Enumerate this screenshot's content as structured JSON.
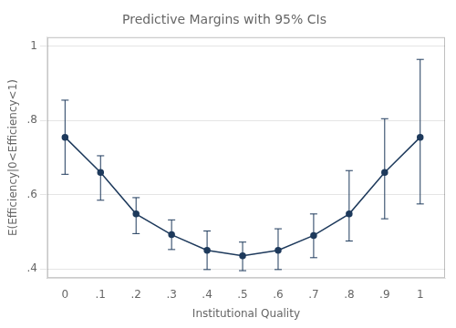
{
  "chart_data": {
    "type": "line",
    "title": "Predictive Margins with 95% CIs",
    "x_label": "Institutional Quality",
    "y_label": "E(Efficiency|0<Efficiency<1)",
    "x": [
      0.0,
      0.1,
      0.2,
      0.3,
      0.4,
      0.5,
      0.6,
      0.7,
      0.8,
      0.9,
      1.0
    ],
    "values": [
      0.755,
      0.66,
      0.548,
      0.492,
      0.45,
      0.435,
      0.45,
      0.49,
      0.548,
      0.66,
      0.755
    ],
    "ci_lower": [
      0.655,
      0.585,
      0.495,
      0.452,
      0.398,
      0.395,
      0.398,
      0.43,
      0.475,
      0.535,
      0.575
    ],
    "ci_upper": [
      0.855,
      0.705,
      0.592,
      0.532,
      0.502,
      0.472,
      0.508,
      0.548,
      0.665,
      0.805,
      0.965
    ],
    "color": "#1e3a5c",
    "marker": "circle",
    "line_style": "solid",
    "xlim": [
      -0.05,
      1.07
    ],
    "xticks": [
      0,
      {
        "value": 0.1,
        "label": ".1"
      },
      {
        "value": 0.2,
        "label": ".2"
      },
      {
        "value": 0.3,
        "label": ".3"
      },
      {
        "value": 0.4,
        "label": ".4"
      },
      {
        "value": 0.5,
        "label": ".5"
      },
      {
        "value": 0.6,
        "label": ".6"
      },
      {
        "value": 0.7,
        "label": ".7"
      },
      {
        "value": 0.8,
        "label": ".8"
      },
      {
        "value": 0.9,
        "label": ".9"
      },
      1
    ],
    "ylim": [
      0.375,
      1.025
    ],
    "yticks": [
      {
        "value": 0.4,
        "label": ".4"
      },
      {
        "value": 0.6,
        "label": ".6"
      },
      {
        "value": 0.8,
        "label": ".8"
      },
      1
    ],
    "grid": "y"
  }
}
